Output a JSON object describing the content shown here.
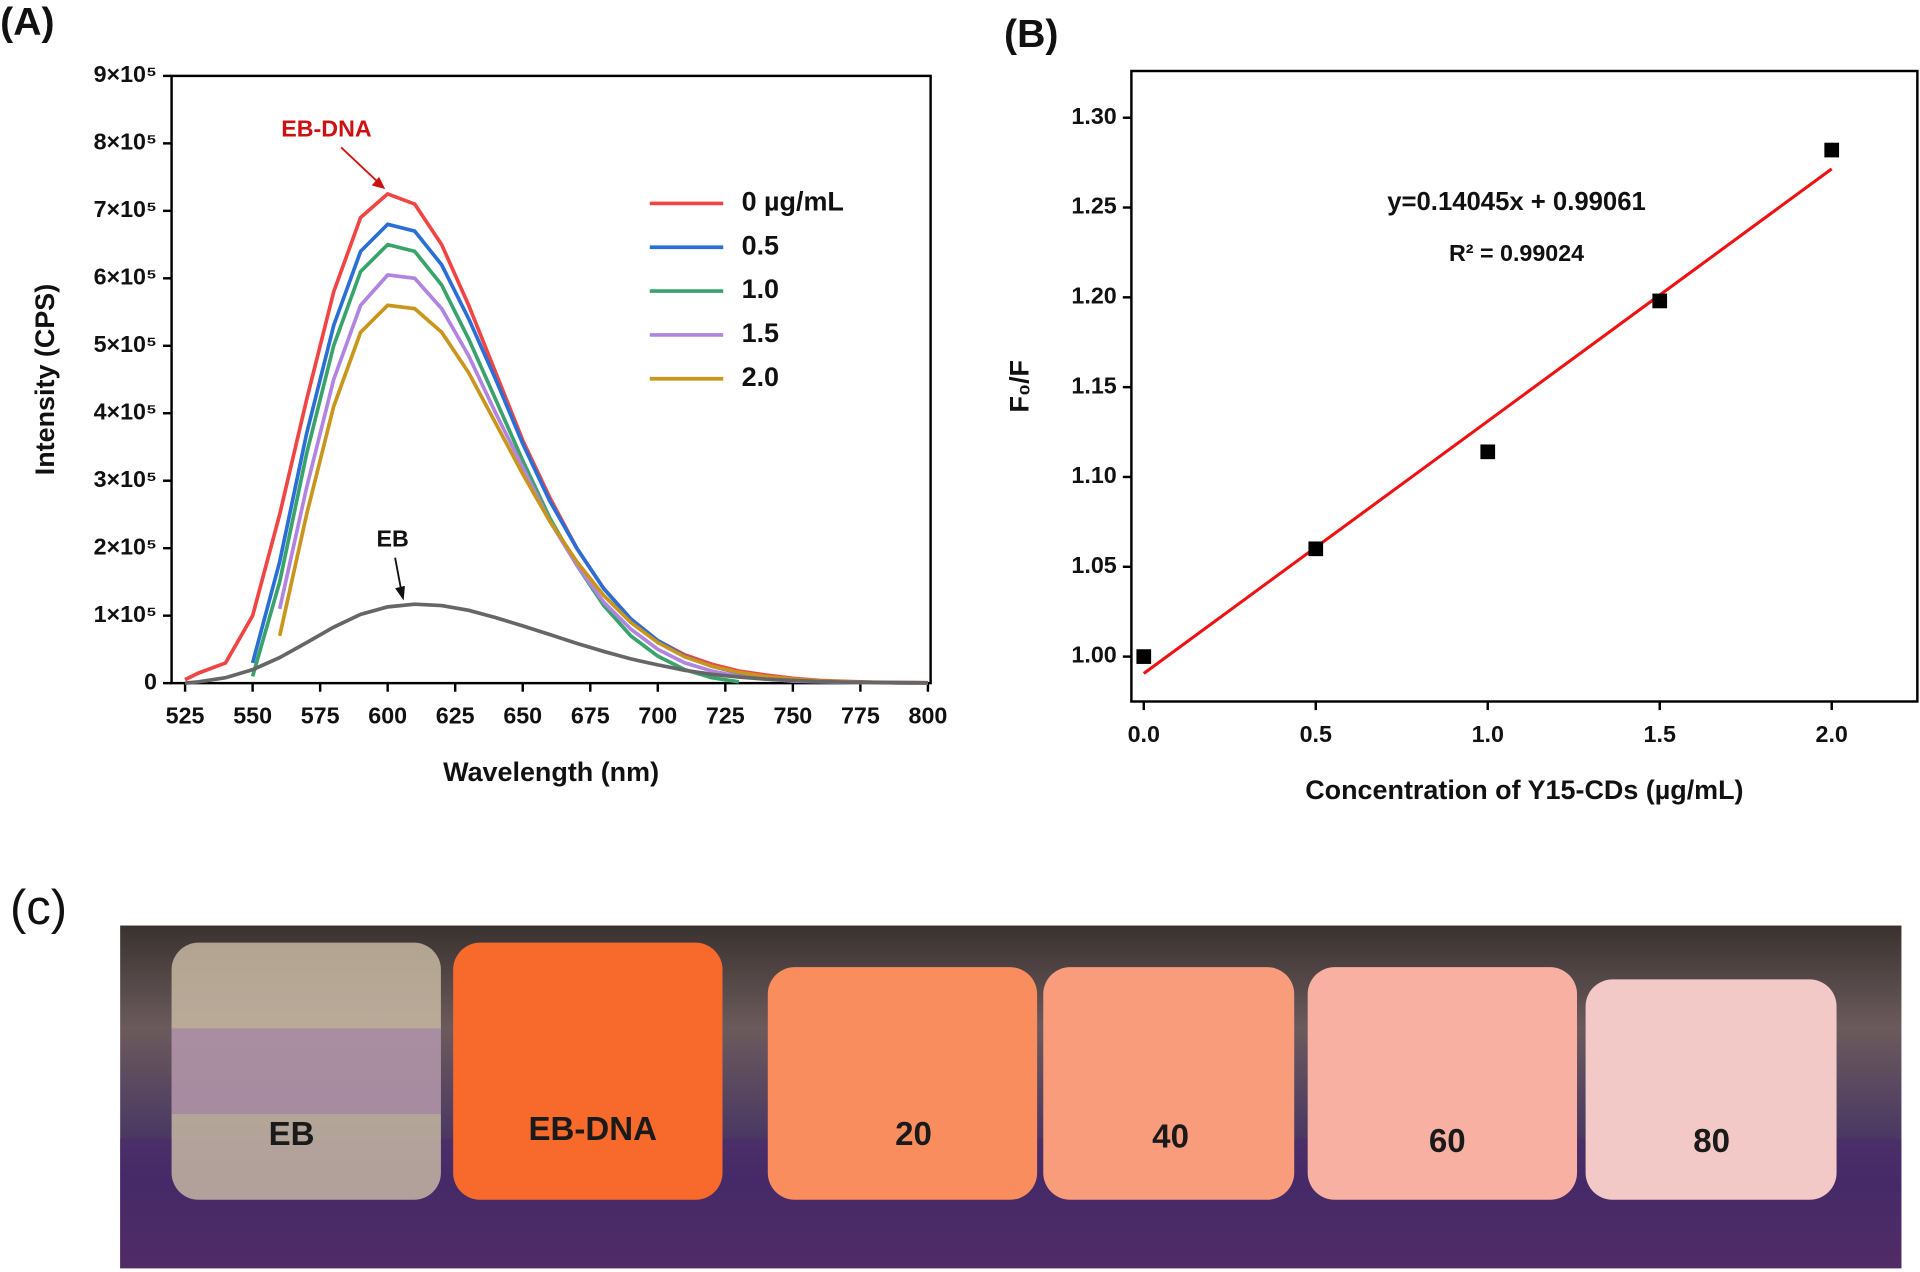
{
  "chart_data": [
    {
      "type": "line",
      "panel_label": "(A)",
      "x_label": "Wavelength (nm)",
      "y_label": "Intensity (CPS)",
      "x": [
        525,
        530,
        540,
        550,
        560,
        570,
        580,
        590,
        600,
        610,
        620,
        630,
        640,
        650,
        660,
        670,
        680,
        690,
        700,
        710,
        720,
        730,
        740,
        750,
        760,
        770,
        780,
        790,
        800
      ],
      "series": [
        {
          "name": "0  µg/mL",
          "color": "#ef4545",
          "values": [
            5000,
            15000,
            30000,
            100000,
            250000,
            420000,
            580000,
            690000,
            725000,
            710000,
            650000,
            560000,
            460000,
            360000,
            275000,
            200000,
            140000,
            95000,
            63000,
            42000,
            28000,
            18000,
            12000,
            7000,
            4000,
            2500,
            1500,
            1000,
            500
          ]
        },
        {
          "name": "0.5",
          "color": "#2a6fd6",
          "values": [
            null,
            null,
            null,
            30000,
            180000,
            370000,
            530000,
            640000,
            680000,
            670000,
            620000,
            540000,
            450000,
            355000,
            270000,
            200000,
            140000,
            95000,
            63000,
            40000,
            25000,
            15000,
            9000,
            5000,
            3000,
            2000,
            1000,
            600,
            300
          ]
        },
        {
          "name": "1.0",
          "color": "#3aa36c",
          "values": [
            null,
            null,
            null,
            10000,
            150000,
            340000,
            500000,
            610000,
            650000,
            640000,
            590000,
            510000,
            420000,
            330000,
            245000,
            175000,
            115000,
            70000,
            40000,
            20000,
            8000,
            2000,
            null,
            null,
            null,
            null,
            null,
            null,
            null
          ]
        },
        {
          "name": "1.5",
          "color": "#b184e0",
          "values": [
            null,
            null,
            null,
            null,
            110000,
            290000,
            450000,
            560000,
            605000,
            600000,
            555000,
            485000,
            400000,
            320000,
            240000,
            175000,
            120000,
            80000,
            50000,
            30000,
            18000,
            10000,
            6000,
            3000,
            2000,
            1000,
            500,
            300,
            200
          ]
        },
        {
          "name": "2.0",
          "color": "#c8961c",
          "values": [
            null,
            null,
            null,
            null,
            70000,
            250000,
            410000,
            520000,
            560000,
            555000,
            520000,
            460000,
            385000,
            310000,
            240000,
            180000,
            130000,
            90000,
            60000,
            39000,
            25000,
            16000,
            10000,
            6000,
            3500,
            2000,
            1000,
            500,
            300
          ]
        },
        {
          "name": "EB",
          "color": "#666666",
          "values": [
            0,
            2000,
            8000,
            20000,
            38000,
            60000,
            83000,
            102000,
            113000,
            117000,
            115000,
            108000,
            97000,
            85000,
            72000,
            59000,
            47000,
            36000,
            27000,
            19000,
            13000,
            9000,
            6000,
            4000,
            2500,
            1500,
            1000,
            500,
            300
          ]
        }
      ],
      "annotations": [
        {
          "text": "EB-DNA",
          "color": "#cc1111"
        }
      ],
      "legend": "upper right",
      "xlim": [
        520,
        801
      ],
      "xticks": [
        525,
        550,
        575,
        600,
        625,
        650,
        675,
        700,
        725,
        750,
        775,
        800
      ],
      "ylim": [
        0,
        900000
      ],
      "yticks": [
        0,
        {
          "value": 100000,
          "label": "1×10⁵"
        },
        {
          "value": 200000,
          "label": "2×10⁵"
        },
        {
          "value": 300000,
          "label": "3×10⁵"
        },
        {
          "value": 400000,
          "label": "4×10⁵"
        },
        {
          "value": 500000,
          "label": "5×10⁵"
        },
        {
          "value": 600000,
          "label": "6×10⁵"
        },
        {
          "value": 700000,
          "label": "7×10⁵"
        },
        {
          "value": 800000,
          "label": "8×10⁵"
        },
        {
          "value": 900000,
          "label": "9×10⁵"
        }
      ]
    },
    {
      "type": "scatter",
      "panel_label": "(B)",
      "x_label": "Concentration of Y15-CDs (µg/mL)",
      "y_label": "F₀/F",
      "x": [
        0,
        0.5,
        1.0,
        1.5,
        2.0
      ],
      "values": [
        1.0,
        1.06,
        1.114,
        1.198,
        1.282
      ],
      "color": "#000000",
      "fit": {
        "slope": 0.14045,
        "intercept": 0.99061,
        "color": "#ee1111"
      },
      "annotations": [
        {
          "text": "y=0.14045x + 0.99061"
        },
        {
          "text": "R² = 0.99024"
        }
      ],
      "xlim": [
        -0.036,
        2.249
      ],
      "xticks": [
        {
          "value": 0,
          "label": "0.0"
        },
        0.5,
        {
          "value": 1,
          "label": "1.0"
        },
        1.5,
        {
          "value": 2,
          "label": "2.0"
        }
      ],
      "ylim": [
        0.975,
        1.326
      ],
      "yticks": [
        {
          "value": 1,
          "label": "1.00"
        },
        1.05,
        {
          "value": 1.1,
          "label": "1.10"
        },
        1.15,
        {
          "value": 1.2,
          "label": "1.20"
        },
        1.25,
        {
          "value": 1.3,
          "label": "1.30"
        }
      ]
    }
  ],
  "photo": {
    "panel_label": "(c)",
    "labels": [
      "EB",
      "EB-DNA",
      "20",
      "40",
      "60",
      "80"
    ]
  }
}
